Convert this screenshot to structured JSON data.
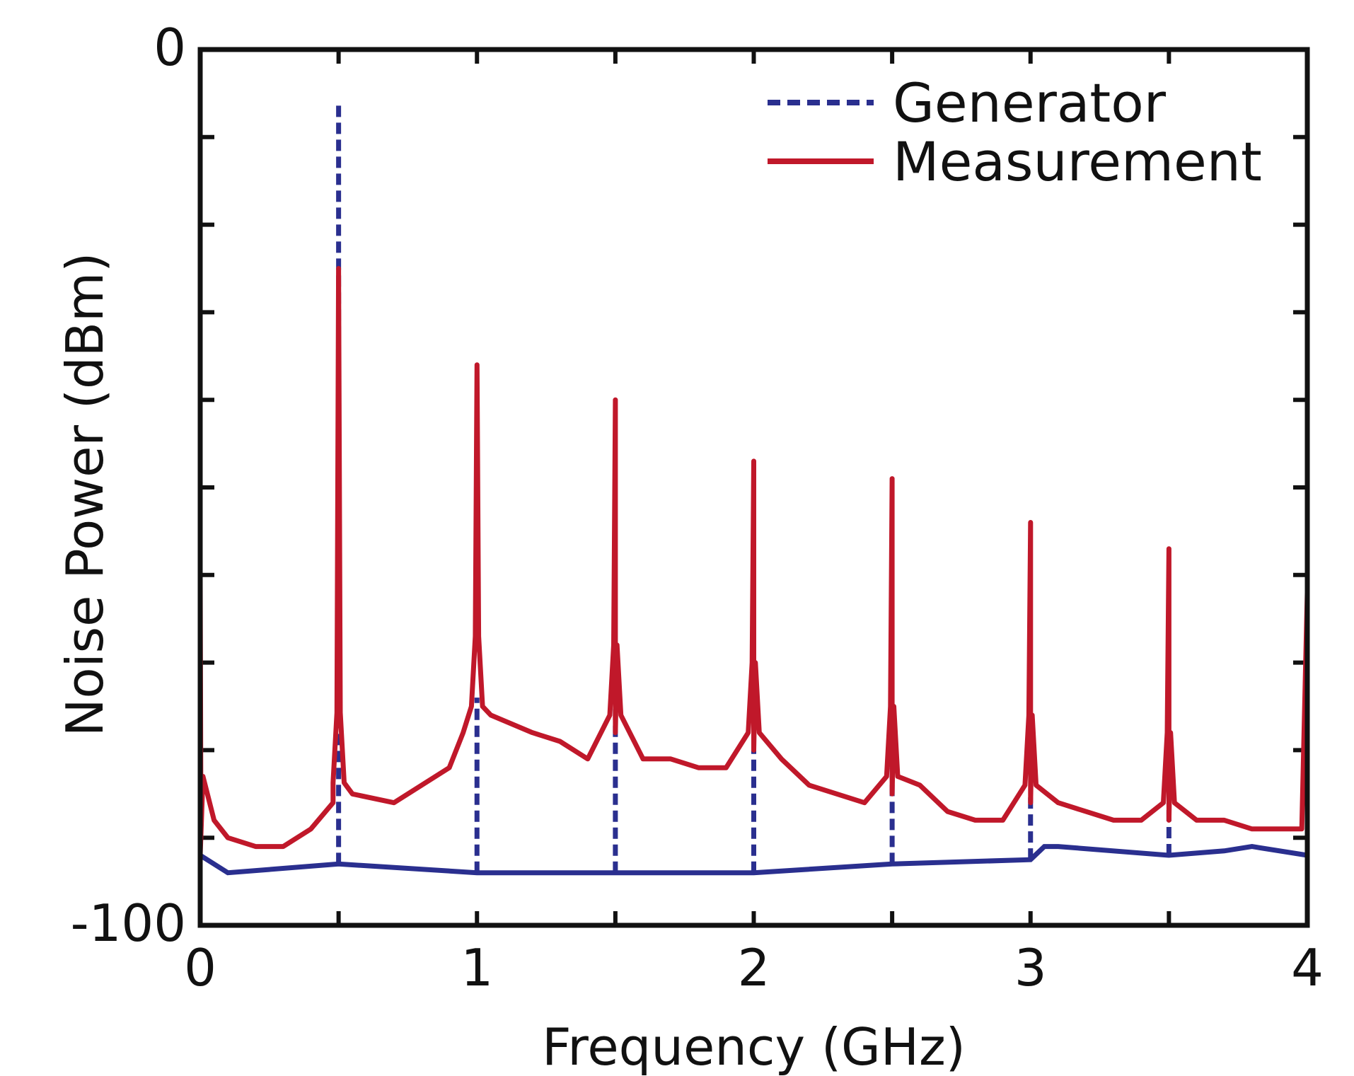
{
  "chart_data": {
    "type": "line",
    "xlabel": "Frequency (GHz)",
    "ylabel": "Noise Power (dBm)",
    "xlim": [
      0,
      4
    ],
    "ylim": [
      -100,
      0
    ],
    "x_ticks": [
      0,
      1,
      2,
      3,
      4
    ],
    "x_tick_labels": [
      "0",
      "1",
      "2",
      "3",
      "4"
    ],
    "y_tick_labels": [
      "0",
      "-100"
    ],
    "y_minor_ticks": [
      -90,
      -80,
      -70,
      -60,
      -50,
      -40,
      -30,
      -20,
      -10
    ],
    "legend_position": "top-right",
    "series": [
      {
        "name": "Generator",
        "color": "#2a2f8f",
        "style": "dashed",
        "baseline": [
          [
            0,
            -92
          ],
          [
            0.1,
            -94
          ],
          [
            0.5,
            -93
          ],
          [
            1.0,
            -94
          ],
          [
            1.5,
            -94
          ],
          [
            2.0,
            -94
          ],
          [
            2.5,
            -93
          ],
          [
            3.0,
            -92.5
          ],
          [
            3.05,
            -91
          ],
          [
            3.1,
            -91
          ],
          [
            3.5,
            -92
          ],
          [
            3.7,
            -91.5
          ],
          [
            3.8,
            -91
          ],
          [
            4.0,
            -92
          ]
        ],
        "peaks": [
          [
            0.5,
            -6
          ],
          [
            1.0,
            -74
          ],
          [
            1.5,
            -73
          ],
          [
            2.0,
            -77
          ],
          [
            2.5,
            -81
          ],
          [
            3.0,
            -85
          ],
          [
            3.5,
            -86
          ]
        ]
      },
      {
        "name": "Measurement",
        "color": "#c0182a",
        "style": "solid",
        "baseline": [
          [
            0,
            -92
          ],
          [
            0.01,
            -83
          ],
          [
            0.05,
            -88
          ],
          [
            0.1,
            -90
          ],
          [
            0.2,
            -91
          ],
          [
            0.3,
            -91
          ],
          [
            0.4,
            -89
          ],
          [
            0.48,
            -86
          ],
          [
            0.55,
            -85
          ],
          [
            0.7,
            -86
          ],
          [
            0.8,
            -84
          ],
          [
            0.9,
            -82
          ],
          [
            0.95,
            -78
          ],
          [
            1.05,
            -76
          ],
          [
            1.2,
            -78
          ],
          [
            1.3,
            -79
          ],
          [
            1.4,
            -81
          ],
          [
            1.5,
            -78
          ],
          [
            1.6,
            -81
          ],
          [
            1.7,
            -81
          ],
          [
            1.8,
            -82
          ],
          [
            1.9,
            -82
          ],
          [
            2.0,
            -80
          ],
          [
            2.1,
            -81
          ],
          [
            2.2,
            -84
          ],
          [
            2.3,
            -85
          ],
          [
            2.4,
            -86
          ],
          [
            2.5,
            -85
          ],
          [
            2.6,
            -84
          ],
          [
            2.7,
            -87
          ],
          [
            2.8,
            -88
          ],
          [
            2.9,
            -88
          ],
          [
            3.0,
            -86
          ],
          [
            3.1,
            -86
          ],
          [
            3.2,
            -87
          ],
          [
            3.3,
            -88
          ],
          [
            3.4,
            -88
          ],
          [
            3.5,
            -88
          ],
          [
            3.6,
            -88
          ],
          [
            3.7,
            -88
          ],
          [
            3.8,
            -89
          ],
          [
            3.9,
            -89
          ],
          [
            3.98,
            -89
          ],
          [
            4.0,
            -62
          ]
        ],
        "peaks": [
          [
            0.5,
            -25
          ],
          [
            1.0,
            -36
          ],
          [
            1.5,
            -40
          ],
          [
            2.0,
            -47
          ],
          [
            2.5,
            -49
          ],
          [
            3.0,
            -54
          ],
          [
            3.5,
            -57
          ]
        ],
        "start_spike": [
          0.0,
          -60
        ]
      }
    ]
  }
}
